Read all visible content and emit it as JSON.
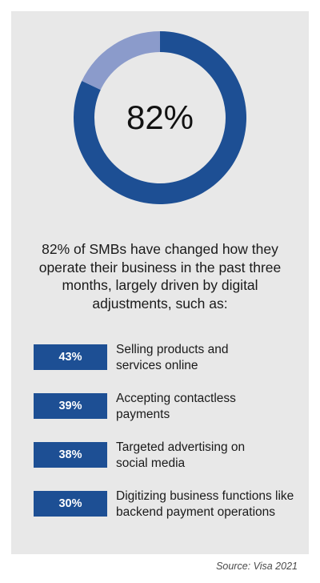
{
  "chart_data": {
    "type": "pie",
    "variant": "donut",
    "center_label": "82%",
    "values": [
      82,
      18
    ],
    "colors": [
      "#1d4f94",
      "#8b9bcb"
    ]
  },
  "headline": "82% of SMBs have changed how they\noperate their business in the past three\nmonths, largely driven by digital\nadjustments, such as:",
  "adjustments": [
    {
      "value": "43%",
      "label": "Selling products and\nservices online"
    },
    {
      "value": "39%",
      "label": "Accepting contactless\npayments"
    },
    {
      "value": "38%",
      "label": "Targeted advertising on\nsocial media"
    },
    {
      "value": "30%",
      "label": "Digitizing business functions like\nbackend payment operations"
    }
  ],
  "source": "Source: Visa 2021"
}
